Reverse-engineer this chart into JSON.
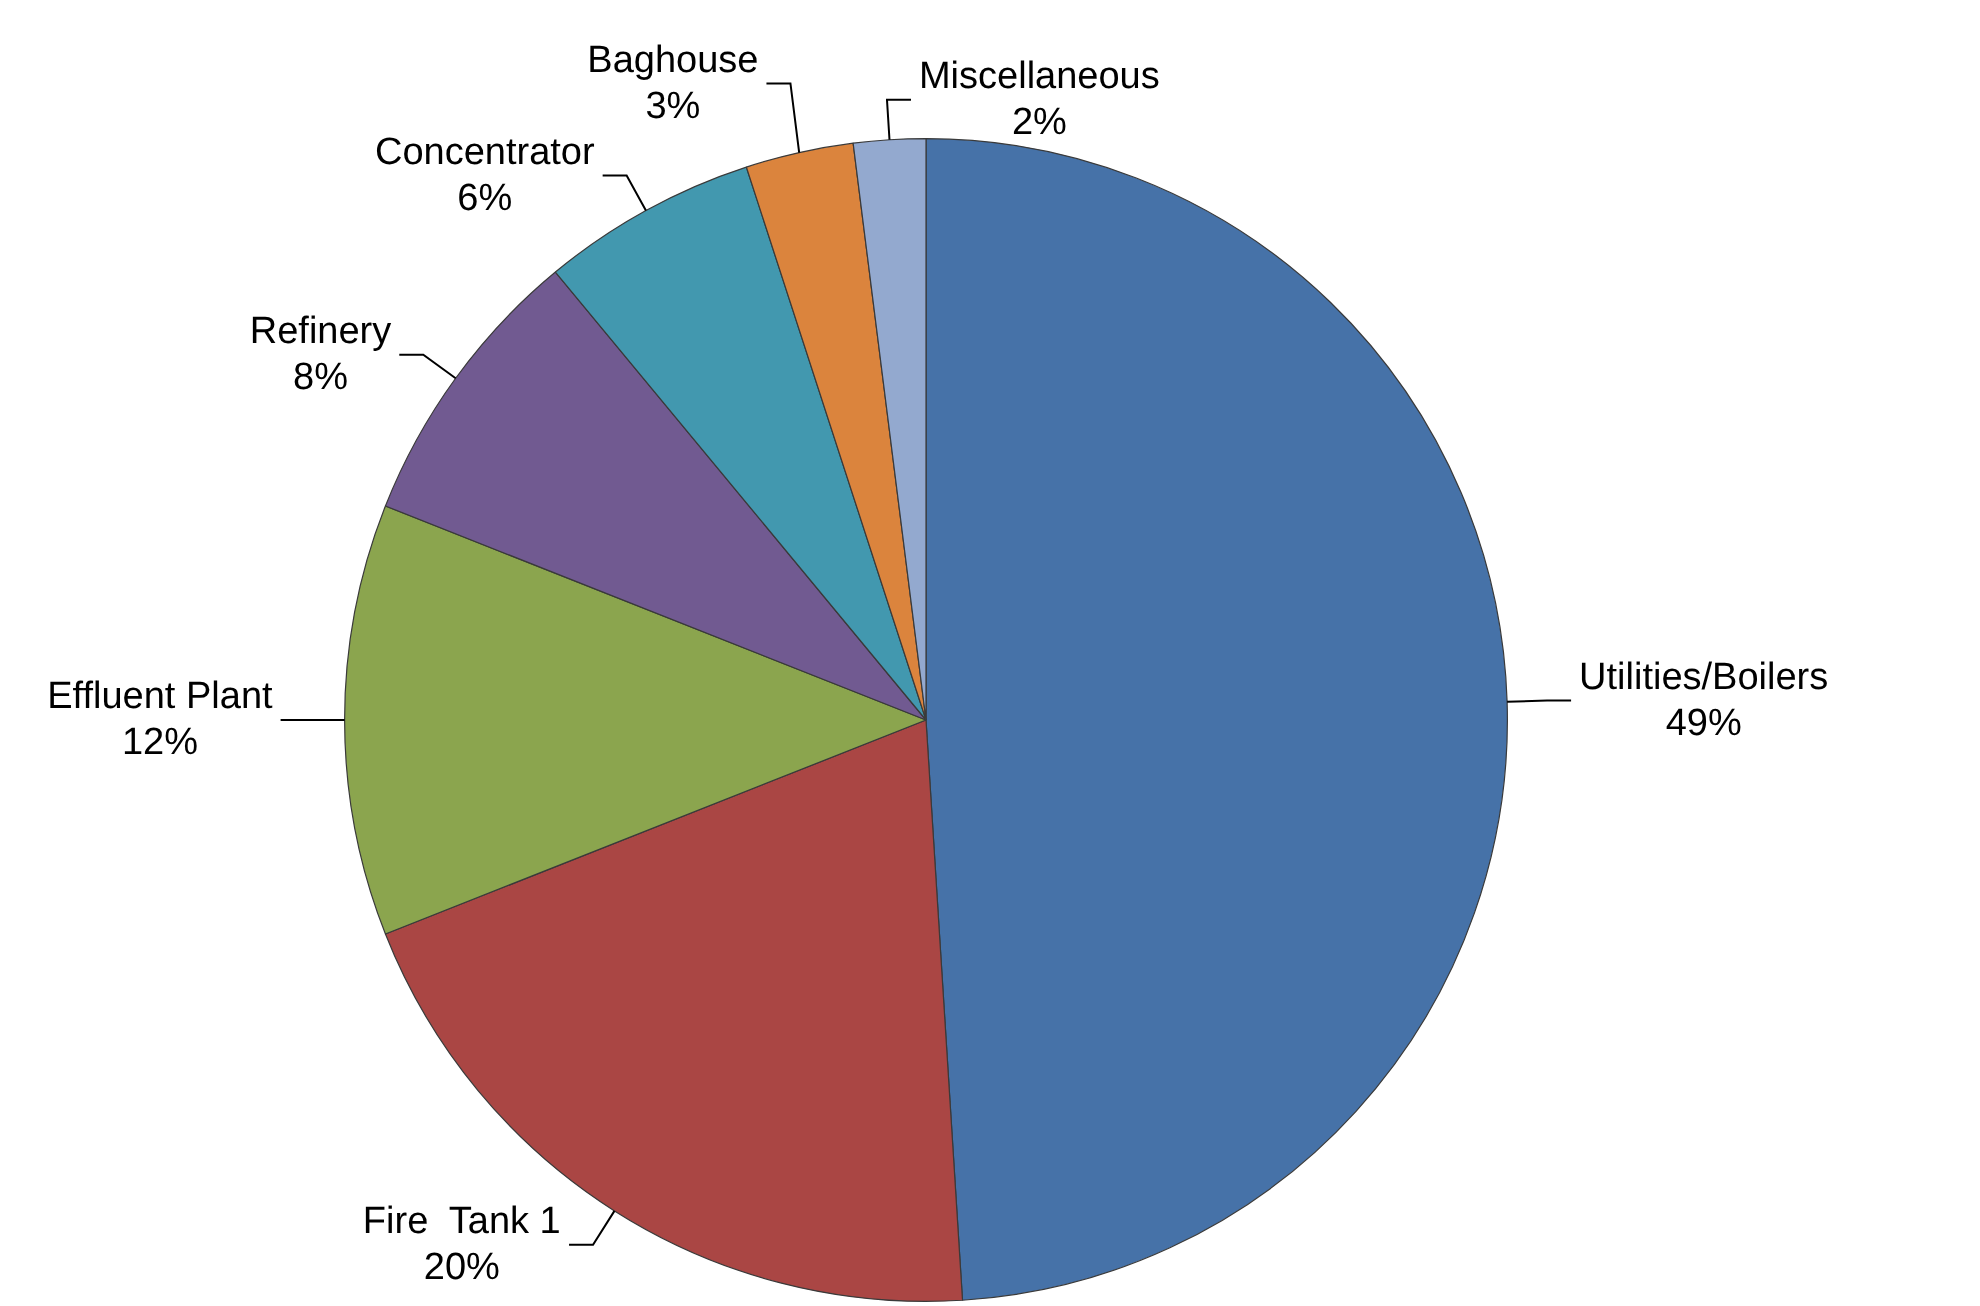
{
  "chart_data": {
    "type": "pie",
    "categories": [
      "Utilities/Boilers",
      "Fire  Tank 1",
      "Effluent Plant",
      "Refinery",
      "Concentrator",
      "Baghouse",
      "Miscellaneous"
    ],
    "values": [
      49,
      20,
      12,
      8,
      6,
      3,
      2
    ],
    "colors": [
      "#4672a8",
      "#aa4644",
      "#8ba54e",
      "#715a91",
      "#4298af",
      "#db843d",
      "#93a9cf"
    ],
    "value_labels": [
      "49%",
      "20%",
      "12%",
      "8%",
      "6%",
      "3%",
      "2%"
    ],
    "legend": false
  }
}
